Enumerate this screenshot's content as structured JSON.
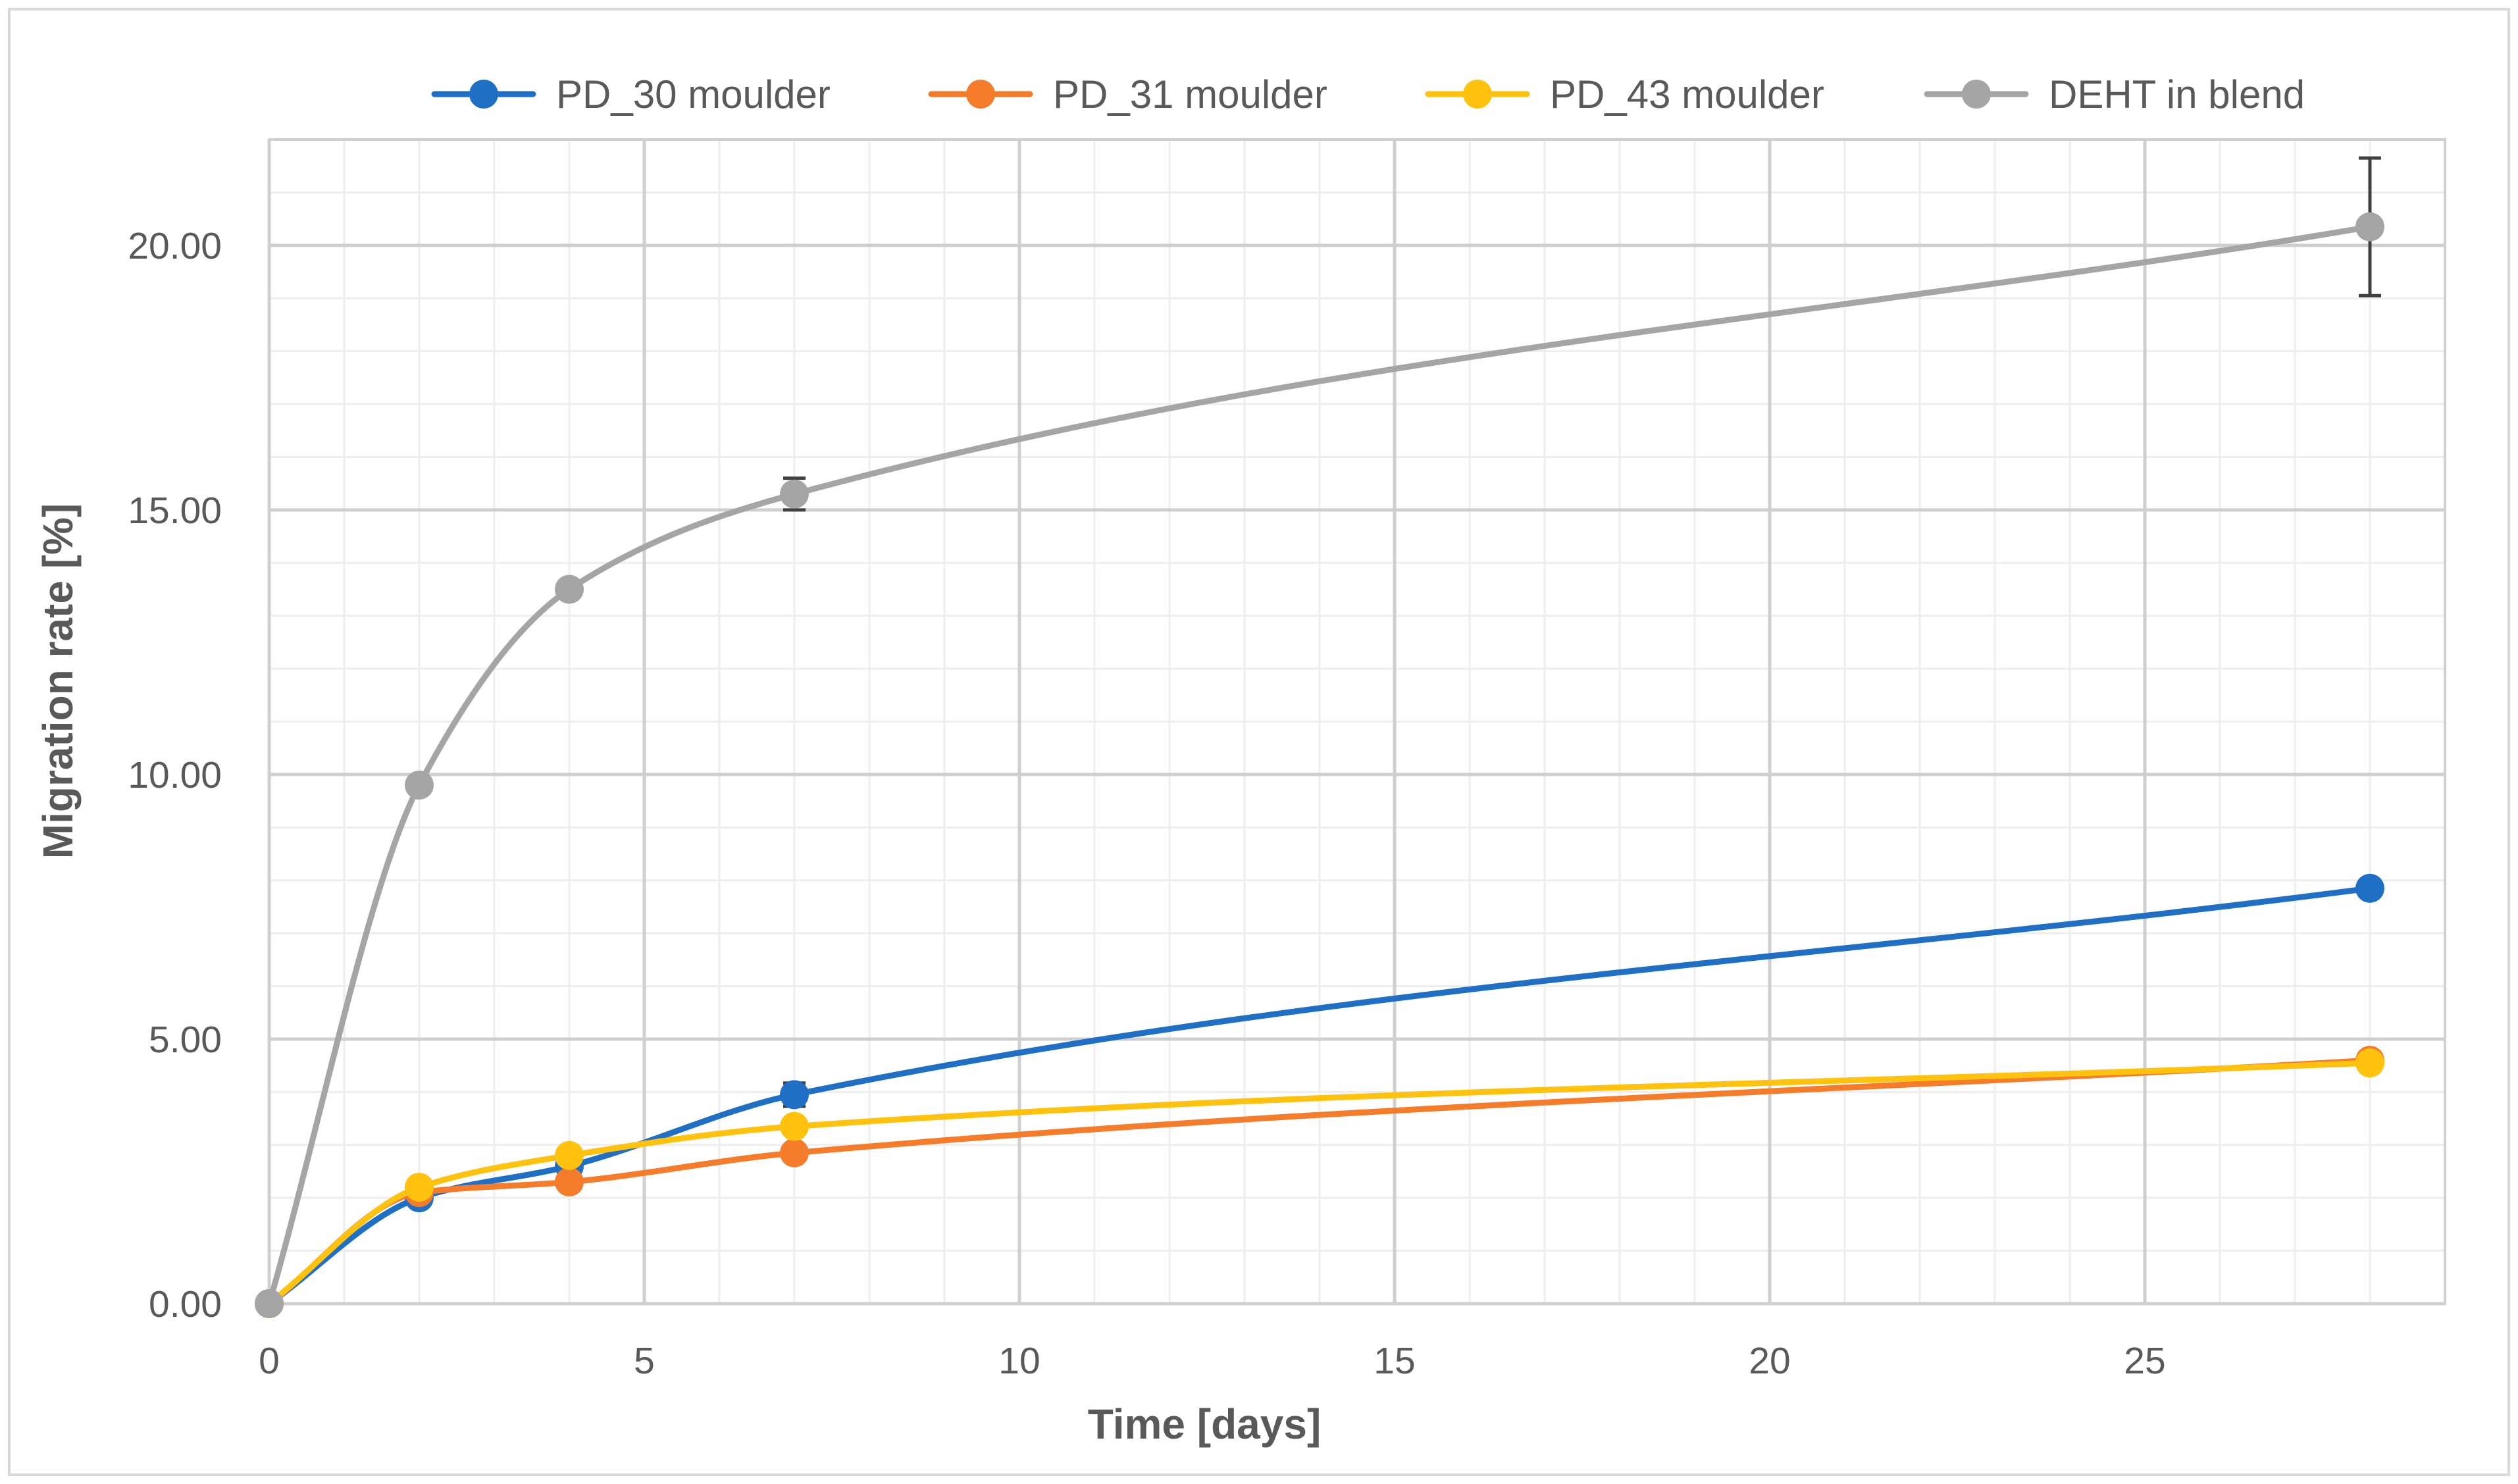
{
  "chart_data": {
    "type": "line",
    "title": "",
    "xlabel": "Time [days]",
    "ylabel": "Migration rate [%]",
    "xlim": [
      0,
      29
    ],
    "ylim": [
      0,
      22
    ],
    "x_ticks": [
      0,
      5,
      10,
      15,
      20,
      25
    ],
    "y_ticks": [
      0,
      5,
      10,
      15,
      20
    ],
    "y_tick_labels": [
      "0.00",
      "5.00",
      "10.00",
      "15.00",
      "20.00"
    ],
    "x_minor_step": 1,
    "y_minor_step": 1,
    "grid": true,
    "smooth": true,
    "legend_position": "top",
    "series": [
      {
        "name": "PD_30 moulder",
        "color": "#1F6FC5",
        "x": [
          0,
          2,
          4,
          7,
          28
        ],
        "y": [
          0,
          2.0,
          2.6,
          3.95,
          7.85
        ],
        "error": [
          0,
          0,
          0,
          0.22,
          0
        ]
      },
      {
        "name": "PD_31 moulder",
        "color": "#F47C2A",
        "x": [
          0,
          2,
          4,
          7,
          28
        ],
        "y": [
          0,
          2.1,
          2.3,
          2.85,
          4.6
        ],
        "error": [
          0,
          0,
          0,
          0,
          0
        ]
      },
      {
        "name": "PD_43 moulder",
        "color": "#FFC20E",
        "x": [
          0,
          2,
          4,
          7,
          28
        ],
        "y": [
          0,
          2.2,
          2.8,
          3.35,
          4.55
        ],
        "error": [
          0,
          0,
          0,
          0,
          0
        ]
      },
      {
        "name": "DEHT in blend",
        "color": "#A5A5A5",
        "x": [
          0,
          2,
          4,
          7,
          28
        ],
        "y": [
          0,
          9.8,
          13.5,
          15.3,
          20.35
        ],
        "error": [
          0,
          0,
          0,
          0.3,
          1.3
        ]
      }
    ]
  }
}
